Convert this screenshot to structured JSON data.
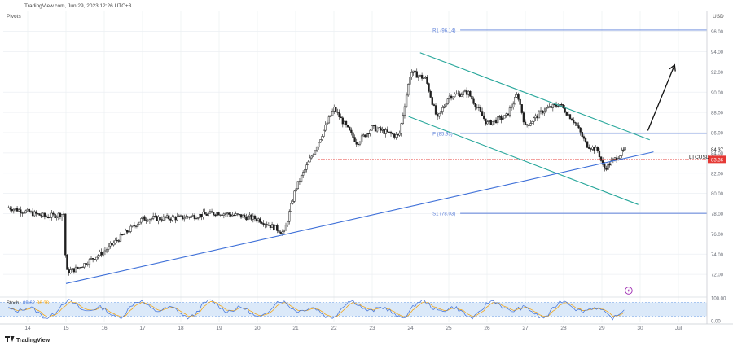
{
  "header": {
    "watermark_text": "TradingView.com, Jun 29, 2023 12:26 UTC+3",
    "indicator_label": "Pivots"
  },
  "footer": {
    "brand_text": "TradingView"
  },
  "colors": {
    "candle": "#1f1f1f",
    "channel": "#26a69a",
    "trendline": "#3d6fd8",
    "pivot_line": "#5b7fd9",
    "support_dotted": "#e53935",
    "tag_red": "#e53935",
    "stoch_k": "#3d6fd8",
    "stoch_d": "#f5a000",
    "stoch_band": "#dbe9f9",
    "stoch_border": "#7aa8e8",
    "arrow": "#111111",
    "spark": "#9c27b0",
    "grid": "#eceff3",
    "axis_text": "#6b6f78"
  },
  "chart_data": {
    "type": "candlestick",
    "symbol": "LTCUSD",
    "currency": "USD",
    "timeframe": "H1",
    "ylim": [
      70.0,
      97.5
    ],
    "y_ticks": [
      "96.00",
      "94.00",
      "92.00",
      "90.00",
      "88.00",
      "86.00",
      "84.00",
      "82.00",
      "80.00",
      "78.00",
      "76.00",
      "74.00",
      "72.00"
    ],
    "x_ticks": [
      "14",
      "15",
      "16",
      "17",
      "18",
      "19",
      "20",
      "21",
      "22",
      "23",
      "24",
      "25",
      "26",
      "27",
      "28",
      "29",
      "30",
      "Jul"
    ],
    "price_tags": {
      "last": {
        "label": "84.37",
        "value": 84.37,
        "sublabel": "34:01"
      },
      "support": {
        "label": "83.36",
        "value": 83.36
      }
    },
    "pivots": [
      {
        "name": "R1",
        "label": "R1 (96.14)",
        "value": 96.14
      },
      {
        "name": "P",
        "label": "P (85.93)",
        "value": 85.93
      },
      {
        "name": "S1",
        "label": "S1 (78.03)",
        "value": 78.03
      }
    ],
    "anchors": [
      {
        "day": 13.5,
        "price": 78.6
      },
      {
        "day": 14.5,
        "price": 77.7
      },
      {
        "day": 14.95,
        "price": 78.0
      },
      {
        "day": 15.0,
        "price": 72.2
      },
      {
        "day": 15.3,
        "price": 72.6
      },
      {
        "day": 16.0,
        "price": 74.3
      },
      {
        "day": 17.0,
        "price": 77.5
      },
      {
        "day": 18.0,
        "price": 77.6
      },
      {
        "day": 19.0,
        "price": 78.1
      },
      {
        "day": 20.0,
        "price": 77.5
      },
      {
        "day": 20.7,
        "price": 76.1
      },
      {
        "day": 21.0,
        "price": 80.5
      },
      {
        "day": 21.5,
        "price": 84.3
      },
      {
        "day": 22.0,
        "price": 88.4
      },
      {
        "day": 22.6,
        "price": 85.0
      },
      {
        "day": 23.0,
        "price": 86.5
      },
      {
        "day": 23.7,
        "price": 85.6
      },
      {
        "day": 24.0,
        "price": 92.0
      },
      {
        "day": 24.4,
        "price": 91.3
      },
      {
        "day": 24.7,
        "price": 87.3
      },
      {
        "day": 25.0,
        "price": 89.6
      },
      {
        "day": 25.5,
        "price": 90.0
      },
      {
        "day": 26.0,
        "price": 86.9
      },
      {
        "day": 26.5,
        "price": 87.6
      },
      {
        "day": 26.8,
        "price": 89.8
      },
      {
        "day": 27.0,
        "price": 86.6
      },
      {
        "day": 27.5,
        "price": 88.3
      },
      {
        "day": 27.9,
        "price": 88.8
      },
      {
        "day": 28.3,
        "price": 87.0
      },
      {
        "day": 28.6,
        "price": 84.8
      },
      {
        "day": 28.9,
        "price": 84.2
      },
      {
        "day": 29.05,
        "price": 82.4
      },
      {
        "day": 29.4,
        "price": 83.6
      },
      {
        "day": 29.62,
        "price": 84.37
      }
    ],
    "channel_upper": {
      "start": {
        "day": 24.25,
        "price": 93.9
      },
      "end": {
        "day": 30.25,
        "price": 85.3
      }
    },
    "channel_lower": {
      "start": {
        "day": 23.95,
        "price": 87.6
      },
      "end": {
        "day": 29.95,
        "price": 78.9
      }
    },
    "trendline": {
      "start": {
        "day": 15.0,
        "price": 71.1
      },
      "end": {
        "day": 30.35,
        "price": 84.1
      }
    },
    "support_line": {
      "from_day": 21.6,
      "value": 83.36
    },
    "pivot_lines_from_day": 28.3,
    "forecast_arrow": {
      "start": {
        "day": 30.2,
        "price": 86.2
      },
      "end": {
        "day": 30.9,
        "price": 92.7
      }
    },
    "stoch": {
      "name": "Stoch",
      "k_label": "89.62",
      "d_label": "86.38",
      "ylim": [
        0,
        100
      ],
      "y_ticks": [
        "100.00",
        "0.00"
      ],
      "band": [
        20,
        80
      ]
    },
    "drawing": {
      "spark_icon": "lightning-icon"
    }
  }
}
